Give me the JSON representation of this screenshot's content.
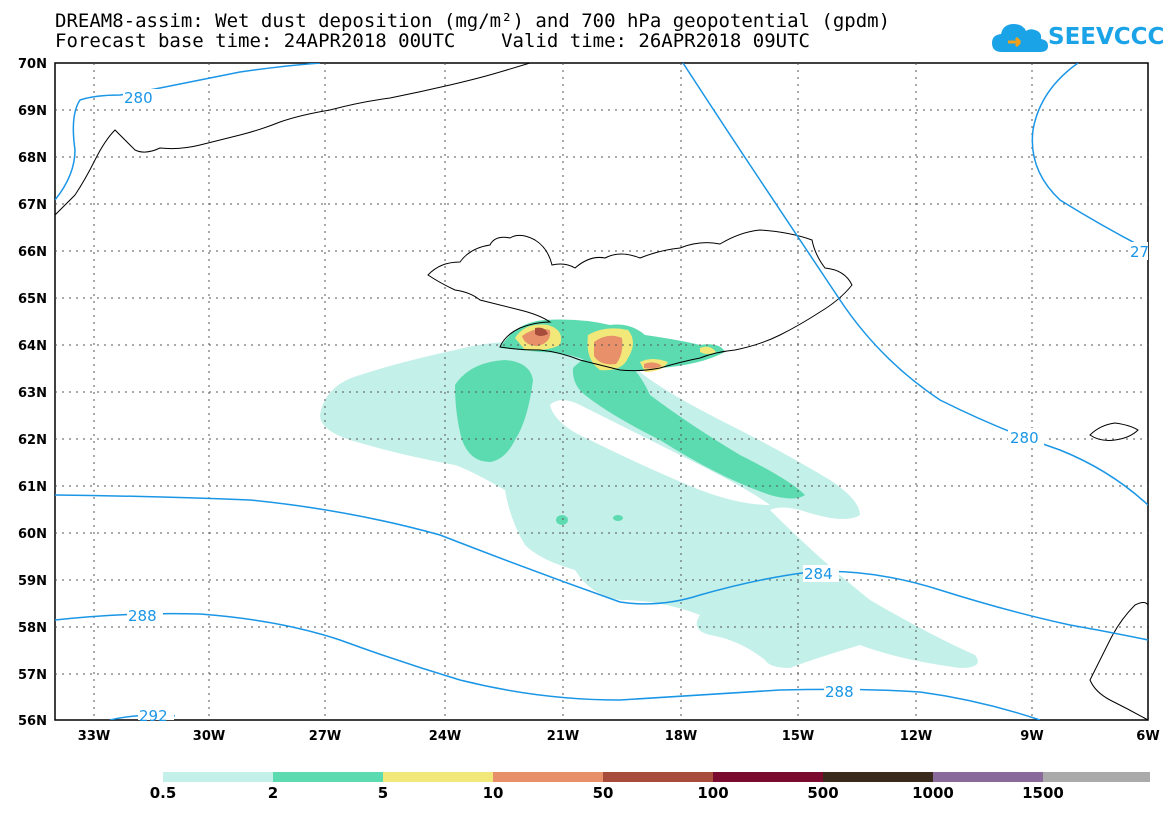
{
  "header": {
    "title_line1": "DREAM8-assim: Wet dust deposition (mg/m²) and 700 hPa geopotential (gpdm)",
    "title_line2": "Forecast base time: 24APR2018 00UTC    Valid time: 26APR2018 09UTC",
    "logo_text": "SEEVCCC"
  },
  "map": {
    "lat_labels": [
      "70N",
      "69N",
      "68N",
      "67N",
      "66N",
      "65N",
      "64N",
      "63N",
      "62N",
      "61N",
      "60N",
      "59N",
      "58N",
      "57N",
      "56N"
    ],
    "lon_labels": [
      "33W",
      "30W",
      "27W",
      "24W",
      "21W",
      "18W",
      "15W",
      "12W",
      "9W",
      "6W"
    ],
    "contour_labels": [
      "280",
      "280",
      "27",
      "284",
      "288",
      "288",
      "292"
    ],
    "colors": {
      "contour": "#1a96e6",
      "coast": "#000000",
      "level_0_5": "#c3f0e8",
      "level_2": "#5ddbb0",
      "level_5": "#f2e87a",
      "level_10": "#e8906a",
      "level_50": "#a84c3c"
    }
  },
  "legend": {
    "labels": [
      "0.5",
      "2",
      "5",
      "10",
      "50",
      "100",
      "500",
      "1000",
      "1500"
    ],
    "colors": [
      "#c3f0e8",
      "#5ddbb0",
      "#f2e87a",
      "#e8906a",
      "#a84c3c",
      "#7a0a2e",
      "#3a2a1c",
      "#8a6a9a",
      "#aaaaaa"
    ]
  }
}
